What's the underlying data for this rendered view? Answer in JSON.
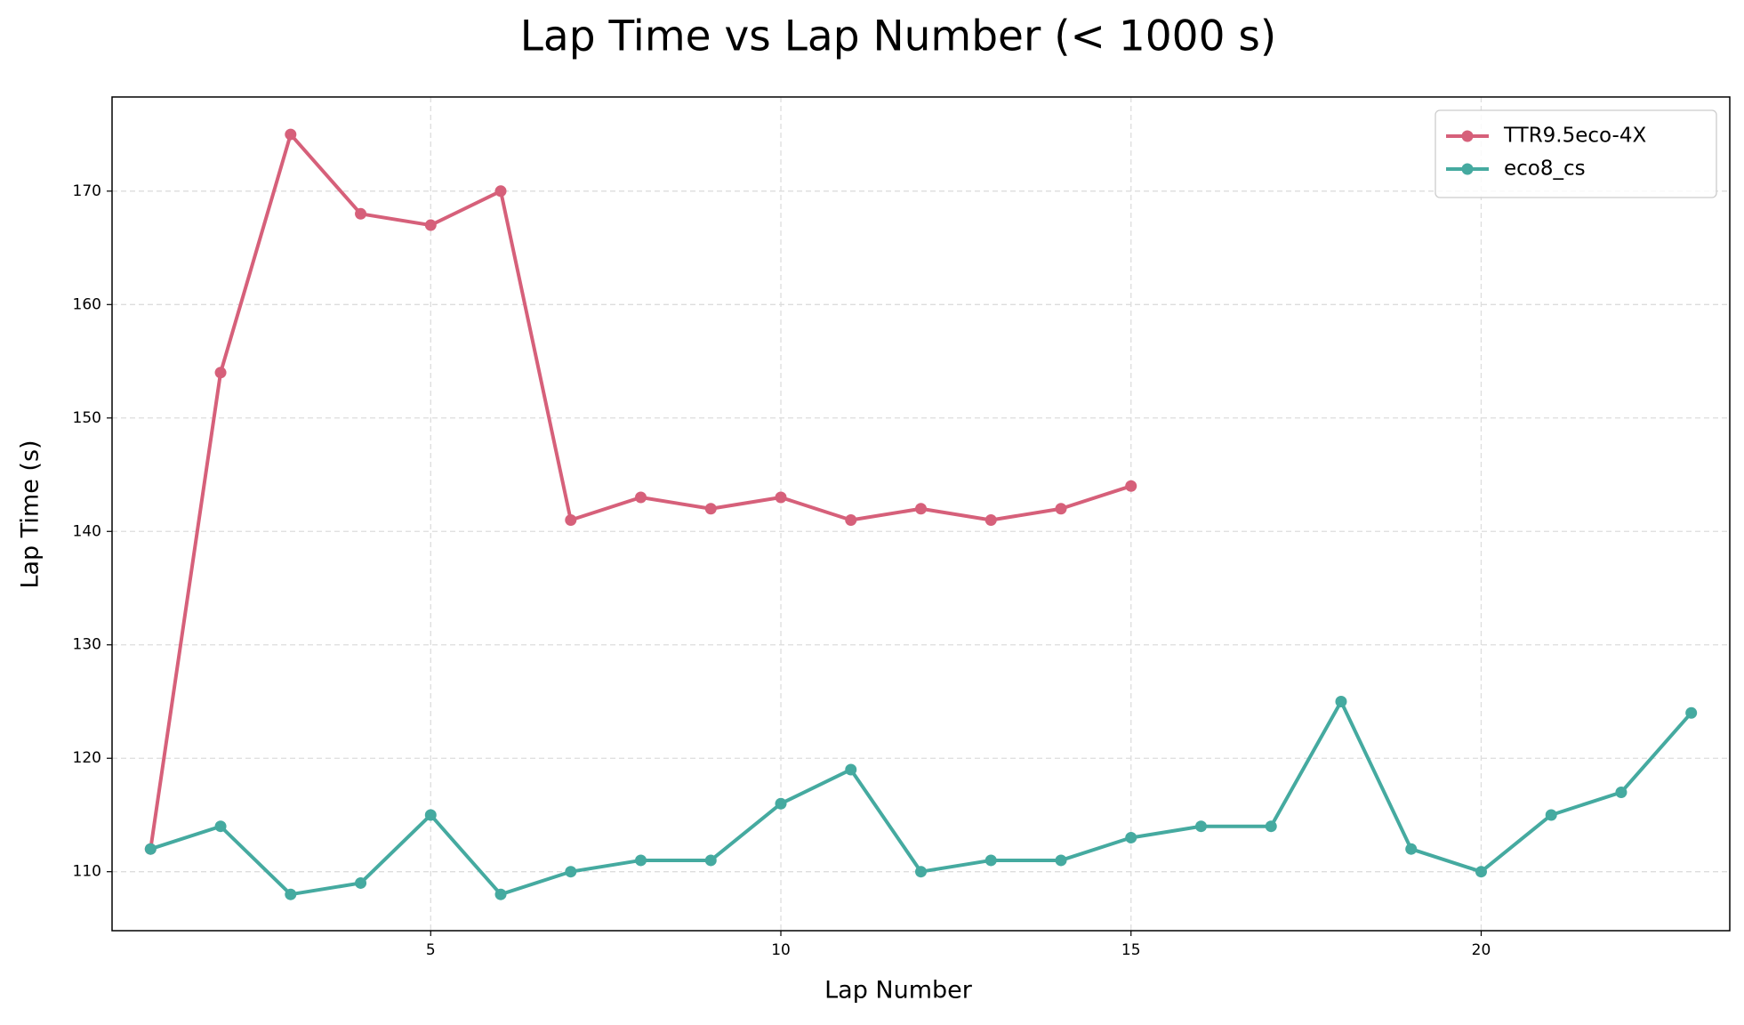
{
  "chart_data": {
    "type": "line",
    "title": "Lap Time vs Lap Number (< 1000 s)",
    "xlabel": "Lap Number",
    "ylabel": "Lap Time (s)",
    "x": [
      1,
      2,
      3,
      4,
      5,
      6,
      7,
      8,
      9,
      10,
      11,
      12,
      13,
      14,
      15,
      16,
      17,
      18,
      19,
      20,
      21,
      22,
      23
    ],
    "series": [
      {
        "name": "TTR9.5eco-4X",
        "color": "#d6607a",
        "values": [
          112,
          154,
          175,
          168,
          167,
          170,
          141,
          143,
          142,
          143,
          141,
          142,
          141,
          142,
          144,
          null,
          null,
          null,
          null,
          null,
          null,
          null,
          null
        ]
      },
      {
        "name": "eco8_cs",
        "color": "#45aaa0",
        "values": [
          112,
          114,
          108,
          109,
          115,
          108,
          110,
          111,
          111,
          116,
          119,
          110,
          111,
          111,
          113,
          114,
          114,
          125,
          112,
          110,
          115,
          117,
          124
        ]
      }
    ],
    "xlim": [
      0.45,
      23.55
    ],
    "xticks": [
      5,
      10,
      15,
      20
    ],
    "ylim": [
      104.8,
      178.3
    ],
    "yticks": [
      110,
      120,
      130,
      140,
      150,
      160,
      170
    ],
    "grid": true,
    "legend": "upper right"
  }
}
